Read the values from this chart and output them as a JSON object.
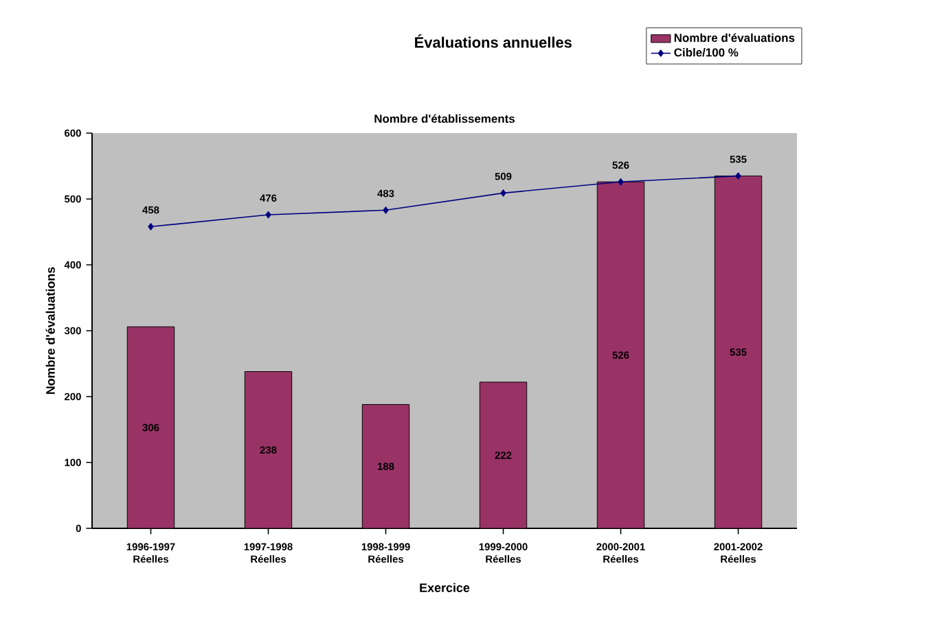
{
  "chart_data": {
    "type": "bar",
    "title": "Évaluations annuelles",
    "subtitle": "Nombre d'établissements",
    "xlabel": "Exercice",
    "ylabel": "Nombre d'évaluations",
    "categories": [
      "1996-1997 Réelles",
      "1997-1998 Réelles",
      "1998-1999 Réelles",
      "1999-2000 Réelles",
      "2000-2001 Réelles",
      "2001-2002 Réelles"
    ],
    "series": [
      {
        "name": "Nombre d'évaluations",
        "color": "#993366",
        "values": [
          306,
          238,
          188,
          222,
          526,
          535
        ]
      },
      {
        "name": "Cible/100 %",
        "type": "line",
        "color": "#000080",
        "marker": "diamond",
        "line_style": "solid",
        "values": [
          458,
          476,
          483,
          509,
          526,
          535
        ]
      }
    ],
    "ylim": [
      0,
      600
    ],
    "yticks": [
      0,
      100,
      200,
      300,
      400,
      500,
      600
    ],
    "data_labels": true,
    "legend": "top right",
    "grid": false
  }
}
